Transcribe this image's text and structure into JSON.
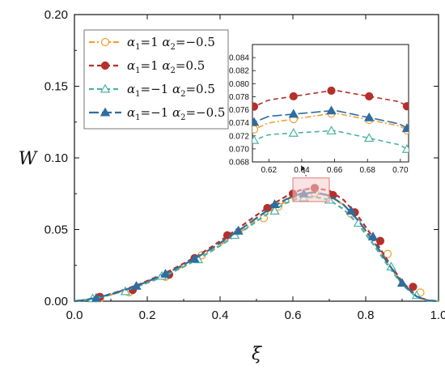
{
  "chart_data": {
    "type": "line",
    "xlabel": "ξ",
    "ylabel": "W",
    "xlim": [
      0.0,
      1.0
    ],
    "ylim": [
      0.0,
      0.2
    ],
    "xticks": [
      "0.0",
      "0.2",
      "0.4",
      "0.6",
      "0.8",
      "1.0"
    ],
    "yticks": [
      "0.00",
      "0.05",
      "0.10",
      "0.15",
      "0.20"
    ],
    "grid": false,
    "legend_position": "top-left",
    "colors": {
      "orange": "#f0a030",
      "red": "#b5302a",
      "teal": "#4db3a0",
      "blue": "#2f6d9e",
      "highlight": "#e07a7a",
      "highlight_fill": "#f4cccc"
    },
    "series": [
      {
        "name": "α1=1 α2=−0.5",
        "legend": {
          "main": "α",
          "s1": "1",
          "eq1": "=1 ",
          "main2": "α",
          "s2": "2",
          "eq2": "=−0.5"
        },
        "color": "#f0a030",
        "dash": "7,3,2,3",
        "marker": "open-circle",
        "x": [
          0.0,
          0.03,
          0.06,
          0.1,
          0.14,
          0.18,
          0.22,
          0.26,
          0.3,
          0.34,
          0.38,
          0.42,
          0.46,
          0.5,
          0.54,
          0.58,
          0.62,
          0.66,
          0.7,
          0.74,
          0.78,
          0.82,
          0.86,
          0.9,
          0.94,
          0.97,
          1.0
        ],
        "y": [
          0.0,
          0.0008,
          0.0022,
          0.0045,
          0.0075,
          0.011,
          0.015,
          0.0195,
          0.0245,
          0.03,
          0.036,
          0.0425,
          0.049,
          0.0565,
          0.0635,
          0.0695,
          0.074,
          0.0755,
          0.0735,
          0.067,
          0.056,
          0.042,
          0.0265,
          0.012,
          0.003,
          0.0005,
          0.0
        ],
        "markers_x": [
          0.07,
          0.15,
          0.25,
          0.35,
          0.52,
          0.56,
          0.66,
          0.76,
          0.86,
          0.95
        ],
        "markers_y": [
          0.002,
          0.0062,
          0.017,
          0.032,
          0.058,
          0.066,
          0.0755,
          0.061,
          0.033,
          0.006
        ]
      },
      {
        "name": "α1=1 α2=0.5",
        "legend": {
          "main": "α",
          "s1": "1",
          "eq1": "=1 ",
          "main2": "α",
          "s2": "2",
          "eq2": "=0.5"
        },
        "color": "#b5302a",
        "dash": "6,4",
        "marker": "filled-circle",
        "x": [
          0.0,
          0.03,
          0.06,
          0.1,
          0.14,
          0.18,
          0.22,
          0.26,
          0.3,
          0.34,
          0.38,
          0.42,
          0.46,
          0.5,
          0.54,
          0.58,
          0.62,
          0.66,
          0.7,
          0.74,
          0.78,
          0.82,
          0.86,
          0.9,
          0.94,
          0.97,
          1.0
        ],
        "y": [
          0.0,
          0.0009,
          0.0025,
          0.005,
          0.0083,
          0.012,
          0.0163,
          0.021,
          0.0263,
          0.032,
          0.0385,
          0.0455,
          0.0527,
          0.06,
          0.067,
          0.073,
          0.0775,
          0.079,
          0.0772,
          0.0705,
          0.059,
          0.0445,
          0.0285,
          0.0135,
          0.0035,
          0.0006,
          0.0
        ],
        "markers_x": [
          0.07,
          0.16,
          0.26,
          0.33,
          0.42,
          0.53,
          0.6,
          0.66,
          0.71,
          0.77,
          0.84,
          0.93
        ],
        "markers_y": [
          0.003,
          0.0078,
          0.0185,
          0.03,
          0.046,
          0.065,
          0.075,
          0.079,
          0.074,
          0.062,
          0.042,
          0.01
        ]
      },
      {
        "name": "α1=−1 α2=0.5",
        "legend": {
          "main": "α",
          "s1": "1",
          "eq1": "=−1 ",
          "main2": "α",
          "s2": "2",
          "eq2": "=0.5"
        },
        "color": "#4db3a0",
        "dash": "6,4",
        "marker": "open-triangle",
        "x": [
          0.0,
          0.03,
          0.06,
          0.1,
          0.14,
          0.18,
          0.22,
          0.26,
          0.3,
          0.34,
          0.38,
          0.42,
          0.46,
          0.5,
          0.54,
          0.58,
          0.62,
          0.66,
          0.7,
          0.74,
          0.78,
          0.82,
          0.86,
          0.9,
          0.94,
          0.97,
          1.0
        ],
        "y": [
          0.0,
          0.0008,
          0.0022,
          0.0045,
          0.0074,
          0.0108,
          0.0147,
          0.0191,
          0.024,
          0.0295,
          0.0355,
          0.042,
          0.0485,
          0.0557,
          0.0625,
          0.0683,
          0.0722,
          0.0728,
          0.0706,
          0.064,
          0.0535,
          0.04,
          0.0252,
          0.0115,
          0.0028,
          0.0004,
          0.0
        ],
        "markers_x": [
          0.05,
          0.14,
          0.24,
          0.34,
          0.44,
          0.55,
          0.63,
          0.7,
          0.78,
          0.87,
          0.94
        ],
        "markers_y": [
          0.0018,
          0.0068,
          0.0175,
          0.029,
          0.046,
          0.063,
          0.0722,
          0.0706,
          0.0545,
          0.024,
          0.004
        ]
      },
      {
        "name": "α1=−1 α2=−0.5",
        "legend": {
          "main": "α",
          "s1": "1",
          "eq1": "=−1 ",
          "main2": "α",
          "s2": "2",
          "eq2": "=−0.5"
        },
        "color": "#2f6d9e",
        "dash": "12,4",
        "marker": "filled-triangle",
        "x": [
          0.0,
          0.03,
          0.06,
          0.1,
          0.14,
          0.18,
          0.22,
          0.26,
          0.3,
          0.34,
          0.38,
          0.42,
          0.46,
          0.5,
          0.54,
          0.58,
          0.62,
          0.66,
          0.7,
          0.74,
          0.78,
          0.82,
          0.86,
          0.9,
          0.94,
          0.97,
          1.0
        ],
        "y": [
          0.0,
          0.0009,
          0.0024,
          0.0048,
          0.008,
          0.0116,
          0.0158,
          0.0204,
          0.0255,
          0.0311,
          0.0373,
          0.044,
          0.0508,
          0.058,
          0.065,
          0.0709,
          0.075,
          0.0759,
          0.0738,
          0.0672,
          0.0562,
          0.0423,
          0.027,
          0.0126,
          0.0032,
          0.0005,
          0.0
        ],
        "markers_x": [
          0.06,
          0.17,
          0.25,
          0.33,
          0.45,
          0.55,
          0.63,
          0.76,
          0.82,
          0.9
        ],
        "markers_y": [
          0.0022,
          0.0105,
          0.019,
          0.0295,
          0.049,
          0.0675,
          0.075,
          0.063,
          0.045,
          0.0126
        ]
      }
    ],
    "inset": {
      "xlim": [
        0.61,
        0.705
      ],
      "ylim": [
        0.068,
        0.086
      ],
      "xticks": [
        "0.62",
        "0.64",
        "0.66",
        "0.68",
        "0.70"
      ],
      "yticks": [
        "0.068",
        "0.070",
        "0.072",
        "0.074",
        "0.076",
        "0.078",
        "0.080",
        "0.082",
        "0.084"
      ],
      "zoom_region_x": [
        0.6,
        0.7
      ],
      "zoom_region_y": [
        0.068,
        0.086
      ],
      "markers_x": [
        0.635,
        0.658,
        0.681
      ]
    }
  }
}
